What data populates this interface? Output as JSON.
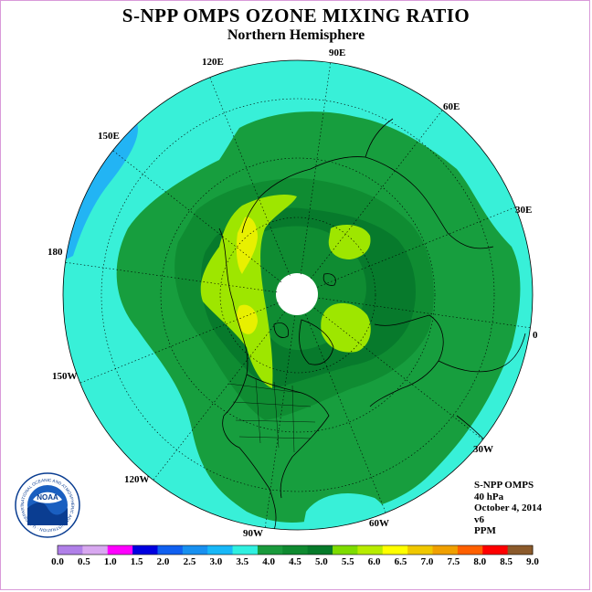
{
  "title": "S-NPP OMPS OZONE MIXING RATIO",
  "subtitle": "Northern Hemisphere",
  "info": {
    "instrument": "S-NPP OMPS",
    "level": "40 hPa",
    "date": "October 4, 2014",
    "version": "v6",
    "units": "PPM"
  },
  "longitude_labels": [
    "90E",
    "60E",
    "30E",
    "0",
    "30W",
    "60W",
    "90W",
    "120W",
    "150W",
    "180",
    "150E",
    "120E"
  ],
  "colorbar": {
    "ticks": [
      "0.0",
      "0.5",
      "1.0",
      "1.5",
      "2.0",
      "2.5",
      "3.0",
      "3.5",
      "4.0",
      "4.5",
      "5.0",
      "5.5",
      "6.0",
      "6.5",
      "7.0",
      "7.5",
      "8.0",
      "8.5",
      "9.0"
    ],
    "colors": [
      "#b080e8",
      "#d8a8f0",
      "#ff00ff",
      "#0000e0",
      "#1060f0",
      "#1890f0",
      "#18b8f8",
      "#30f0e0",
      "#1a9a3c",
      "#0f8a30",
      "#067a2a",
      "#7edc00",
      "#b8ec00",
      "#ffff00",
      "#f0c800",
      "#f0a000",
      "#ff6000",
      "#ff0000",
      "#8b5a2b"
    ]
  },
  "logo": {
    "text": "NOAA",
    "ring_text": "NATIONAL OCEANIC AND ATMOSPHERIC ADMINISTRATION · U.S. DEPARTMENT OF COMMERCE"
  },
  "colors": {
    "polar_night": "#ffffff",
    "cyan_band": "#38f0d8",
    "blue_patch": "#22b4f4",
    "green_outer": "#179e3e",
    "green_mid": "#0f8c32",
    "green_dark": "#077a2c",
    "yellow_green": "#9ee600",
    "yellow": "#e8f000"
  }
}
